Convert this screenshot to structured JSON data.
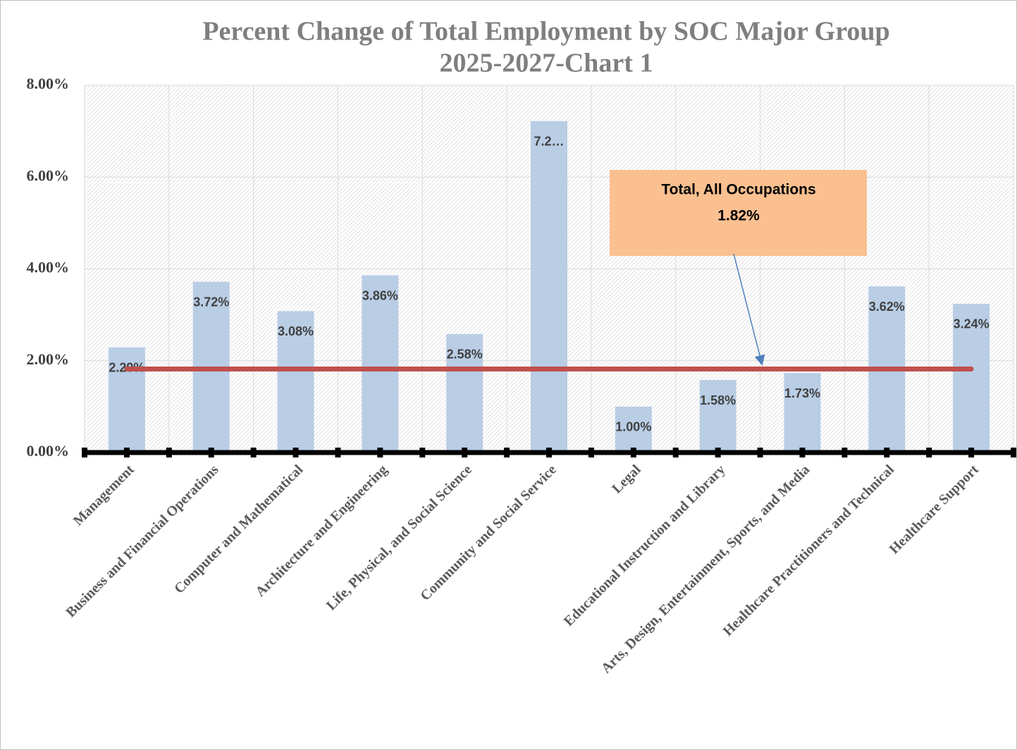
{
  "chart_data": {
    "type": "bar",
    "title": "Percent Change of Total Employment by SOC Major Group",
    "subtitle": "2025-2027-Chart 1",
    "categories": [
      "Management",
      "Business and Financial Operations",
      "Computer and Mathematical",
      "Architecture and Engineering",
      "Life, Physical, and Social Science",
      "Community and Social Service",
      "Legal",
      "Educational Instruction and Library",
      "Arts, Design, Entertainment, Sports, and Media",
      "Healthcare Practitioners and Technical",
      "Healthcare Support"
    ],
    "values": [
      2.29,
      3.72,
      3.08,
      3.86,
      2.58,
      7.22,
      1.0,
      1.58,
      1.73,
      3.62,
      3.24
    ],
    "value_labels": [
      "2.29%",
      "3.72%",
      "3.08%",
      "3.86%",
      "2.58%",
      "7.2…",
      "1.00%",
      "1.58%",
      "1.73%",
      "3.62%",
      "3.24%"
    ],
    "color": "#b9cde5",
    "ylim": [
      0,
      8
    ],
    "yticks": [
      {
        "value": 0,
        "label": "0.00%"
      },
      {
        "value": 2,
        "label": "2.00%"
      },
      {
        "value": 4,
        "label": "4.00%"
      },
      {
        "value": 6,
        "label": "6.00%"
      },
      {
        "value": 8,
        "label": "8.00%"
      }
    ],
    "grid": true,
    "reference_line": {
      "name": "Total, All Occupations",
      "value": 1.82,
      "label": "1.82%",
      "color": "#c0504d"
    }
  }
}
